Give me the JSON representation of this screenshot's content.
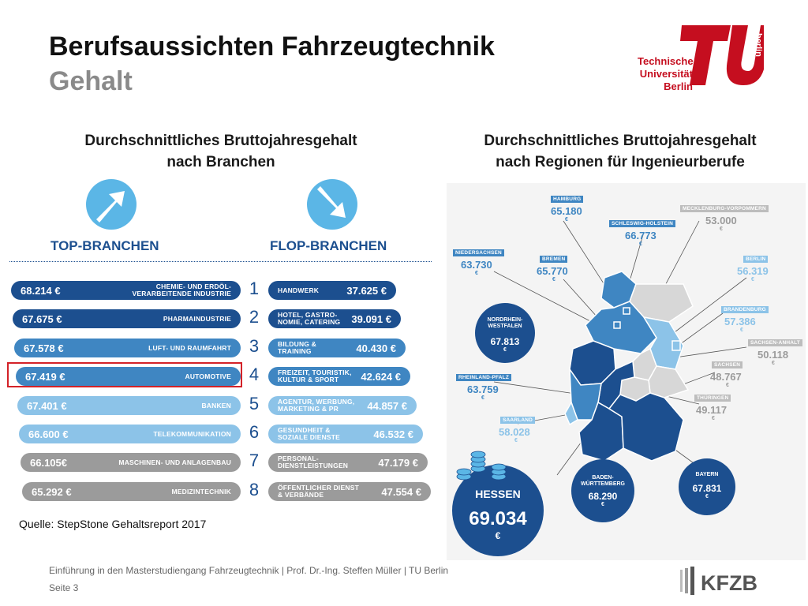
{
  "header": {
    "title": "Berufsaussichten Fahrzeugtechnik",
    "subtitle": "Gehalt"
  },
  "logo": {
    "line1": "Technische",
    "line2": "Universität",
    "line3": "Berlin",
    "mark_text": "berlin"
  },
  "left_section": {
    "heading_line1": "Durchschnittliches Bruttojahresgehalt",
    "heading_line2": "nach Branchen",
    "top_label": "TOP-BRANCHEN",
    "flop_label": "FLOP-BRANCHEN",
    "ranks": [
      "1",
      "2",
      "3",
      "4",
      "5",
      "6",
      "7",
      "8"
    ],
    "top": [
      {
        "value": "68.214 €",
        "label": "CHEMIE- UND ERDÖL-\nVERARBEITENDE INDUSTRIE"
      },
      {
        "value": "67.675 €",
        "label": "PHARMAINDUSTRIE"
      },
      {
        "value": "67.578 €",
        "label": "LUFT- UND RAUMFAHRT"
      },
      {
        "value": "67.419 €",
        "label": "AUTOMOTIVE"
      },
      {
        "value": "67.401 €",
        "label": "BANKEN"
      },
      {
        "value": "66.600 €",
        "label": "TELEKOMMUNIKATION"
      },
      {
        "value": "66.105€",
        "label": "MASCHINEN- UND ANLAGENBAU"
      },
      {
        "value": "65.292 €",
        "label": "MEDIZINTECHNIK"
      }
    ],
    "flop": [
      {
        "value": "37.625 €",
        "label": "HANDWERK"
      },
      {
        "value": "39.091 €",
        "label": "HOTEL, GASTRO-\nNOMIE, CATERING"
      },
      {
        "value": "40.430 €",
        "label": "BILDUNG &\nTRAINING"
      },
      {
        "value": "42.624 €",
        "label": "FREIZEIT, TOURISTIK,\nKULTUR & SPORT"
      },
      {
        "value": "44.857 €",
        "label": "AGENTUR, WERBUNG,\nMARKETING & PR"
      },
      {
        "value": "46.532 €",
        "label": "GESUNDHEIT &\nSOZIALE DIENSTE"
      },
      {
        "value": "47.179 €",
        "label": "PERSONAL-\nDIENSTLEISTUNGEN"
      },
      {
        "value": "47.554 €",
        "label": "ÖFFENTLICHER DIENST\n& VERBÄNDE"
      }
    ],
    "highlighted_rank": "4",
    "source": "Quelle: StepStone Gehaltsreport 2017"
  },
  "right_section": {
    "heading_line1": "Durchschnittliches Bruttojahresgehalt",
    "heading_line2": "nach Regionen für Ingenieurberufe",
    "euro": "€",
    "regions": {
      "hamburg": {
        "name": "HAMBURG",
        "value": "65.180"
      },
      "schleswig": {
        "name": "SCHLESWIG-HOLSTEIN",
        "value": "66.773"
      },
      "mecklenburg": {
        "name": "MECKLENBURG-VORPOMMERN",
        "value": "53.000"
      },
      "niedersachsen": {
        "name": "NIEDERSACHSEN",
        "value": "63.730"
      },
      "bremen": {
        "name": "BREMEN",
        "value": "65.770"
      },
      "berlin": {
        "name": "BERLIN",
        "value": "56.319"
      },
      "nrw": {
        "name": "NORDRHEIN-\nWESTFALEN",
        "value": "67.813"
      },
      "brandenburg": {
        "name": "BRANDENBURG",
        "value": "57.386"
      },
      "sachsen_anhalt": {
        "name": "SACHSEN-ANHALT",
        "value": "50.118"
      },
      "rheinland": {
        "name": "RHEINLAND-PFALZ",
        "value": "63.759"
      },
      "sachsen": {
        "name": "SACHSEN",
        "value": "48.767"
      },
      "thueringen": {
        "name": "THÜRINGEN",
        "value": "49.117"
      },
      "saarland": {
        "name": "SAARLAND",
        "value": "58.028"
      },
      "hessen": {
        "name": "HESSEN",
        "value": "69.034"
      },
      "bw": {
        "name": "BADEN-\nWÜRTTEMBERG",
        "value": "68.290"
      },
      "bayern": {
        "name": "BAYERN",
        "value": "67.831"
      }
    }
  },
  "footer": {
    "text": "Einführung in den Masterstudiengang Fahrzeugtechnik | Prof. Dr.-Ing. Steffen Müller | TU Berlin",
    "page": "Seite 3",
    "logo_text": "KFZB"
  },
  "colors": {
    "tu_red": "#c50e1f",
    "dark_blue": "#1c4f8f",
    "mid_blue": "#3f86c2",
    "light_blue": "#8cc3e8",
    "grey": "#9b9b9b",
    "highlight": "#d32228"
  }
}
